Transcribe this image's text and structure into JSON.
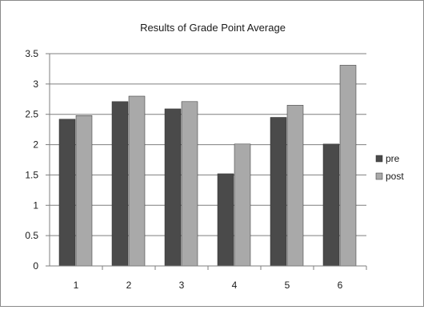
{
  "chart_data": {
    "type": "bar",
    "title": "Results of Grade Point Average",
    "xlabel": "",
    "ylabel": "",
    "categories": [
      "1",
      "2",
      "3",
      "4",
      "5",
      "6"
    ],
    "series": [
      {
        "name": "pre",
        "values": [
          2.42,
          2.71,
          2.59,
          1.52,
          2.45,
          2.01
        ],
        "color": "#4a4a4a"
      },
      {
        "name": "post",
        "values": [
          2.48,
          2.8,
          2.71,
          2.01,
          2.65,
          3.31
        ],
        "color": "#a9a9a9"
      }
    ],
    "ylim": [
      0,
      3.5
    ],
    "yticks": [
      "0",
      "0.5",
      "1",
      "1.5",
      "2",
      "2.5",
      "3",
      "3.5"
    ],
    "grid": true,
    "legend": "right"
  }
}
